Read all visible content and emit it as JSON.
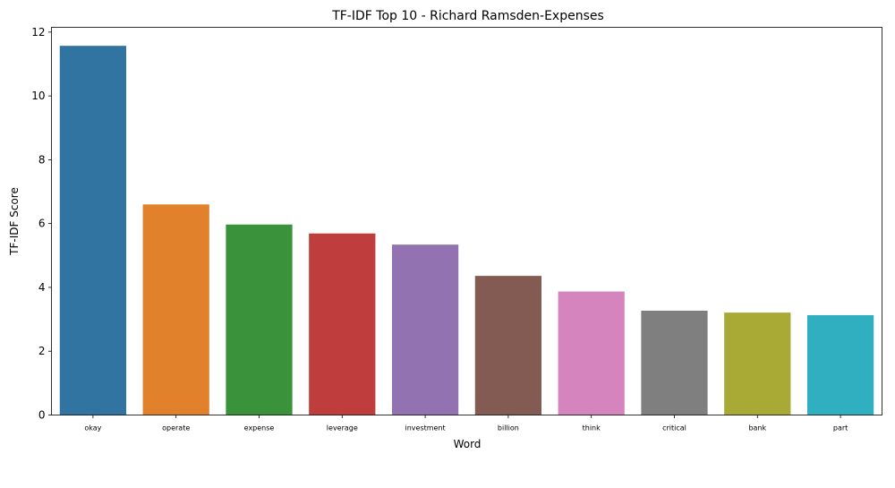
{
  "chart_data": {
    "type": "bar",
    "title": "TF-IDF Top 10 - Richard Ramsden-Expenses",
    "xlabel": "Word",
    "ylabel": "TF-IDF Score",
    "categories": [
      "okay",
      "operate",
      "expense",
      "leverage",
      "investment",
      "billion",
      "think",
      "critical",
      "bank",
      "part"
    ],
    "values": [
      11.57,
      6.6,
      5.97,
      5.69,
      5.34,
      4.36,
      3.87,
      3.27,
      3.21,
      3.13
    ],
    "colors": [
      "#3274a1",
      "#e1812c",
      "#3a923a",
      "#c03d3e",
      "#9372b2",
      "#845b53",
      "#d684bd",
      "#7f7f7f",
      "#a9aa35",
      "#2fafc0"
    ],
    "ylim": [
      0,
      12.15
    ],
    "yticks": [
      0,
      2,
      4,
      6,
      8,
      10,
      12
    ],
    "grid": false,
    "legend": "none"
  }
}
